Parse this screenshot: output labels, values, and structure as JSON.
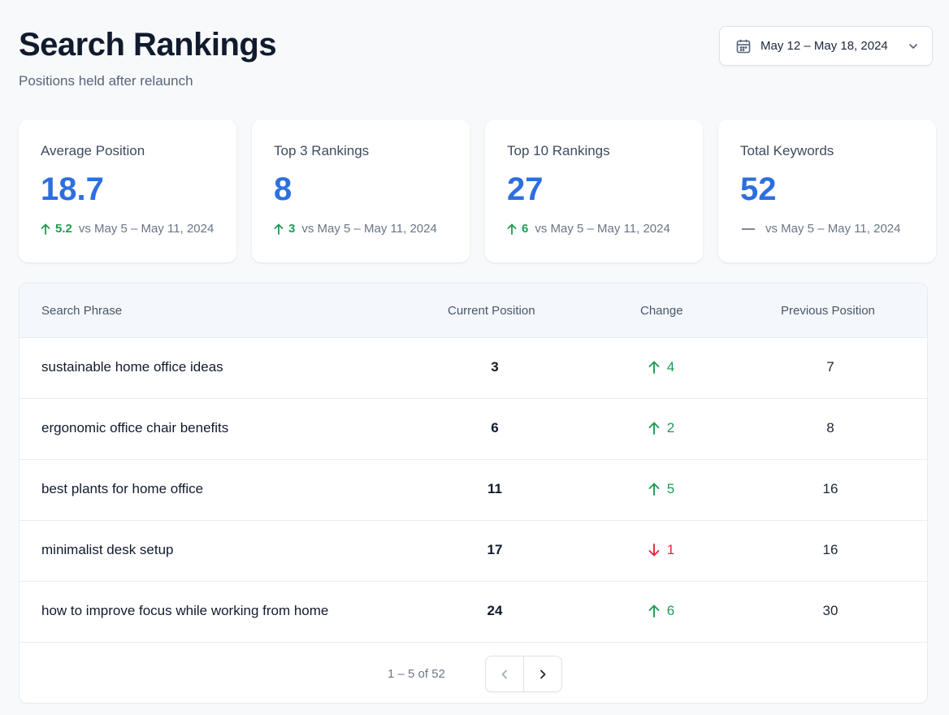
{
  "header": {
    "title": "Search Rankings",
    "subtitle": "Positions held after relaunch"
  },
  "date_range": {
    "label": "May 12 – May 18, 2024",
    "icon": "calendar-icon"
  },
  "colors": {
    "accent": "#2d6fdf",
    "positive": "#1e9b52",
    "negative": "#dd2a3c"
  },
  "stats": [
    {
      "label": "Average Position",
      "value": "18.7",
      "delta": "5.2",
      "direction": "up",
      "compare": "vs May 5 – May 11, 2024"
    },
    {
      "label": "Top 3 Rankings",
      "value": "8",
      "delta": "3",
      "direction": "up",
      "compare": "vs May 5 – May 11, 2024"
    },
    {
      "label": "Top 10 Rankings",
      "value": "27",
      "delta": "6",
      "direction": "up",
      "compare": "vs May 5 – May 11, 2024"
    },
    {
      "label": "Total Keywords",
      "value": "52",
      "delta": "",
      "direction": "neutral",
      "compare": "vs May 5 – May 11, 2024"
    }
  ],
  "table": {
    "columns": [
      "Search Phrase",
      "Current Position",
      "Change",
      "Previous Position"
    ],
    "rows": [
      {
        "phrase": "sustainable home office ideas",
        "current": "3",
        "change": "4",
        "direction": "up",
        "previous": "7"
      },
      {
        "phrase": "ergonomic office chair benefits",
        "current": "6",
        "change": "2",
        "direction": "up",
        "previous": "8"
      },
      {
        "phrase": "best plants for home office",
        "current": "11",
        "change": "5",
        "direction": "up",
        "previous": "16"
      },
      {
        "phrase": "minimalist desk setup",
        "current": "17",
        "change": "1",
        "direction": "down",
        "previous": "16"
      },
      {
        "phrase": "how to improve focus while working from home",
        "current": "24",
        "change": "6",
        "direction": "up",
        "previous": "30"
      }
    ]
  },
  "pagination": {
    "summary": "1 – 5 of 52",
    "prev_icon": "chevron-left-icon",
    "next_icon": "chevron-right-icon"
  }
}
